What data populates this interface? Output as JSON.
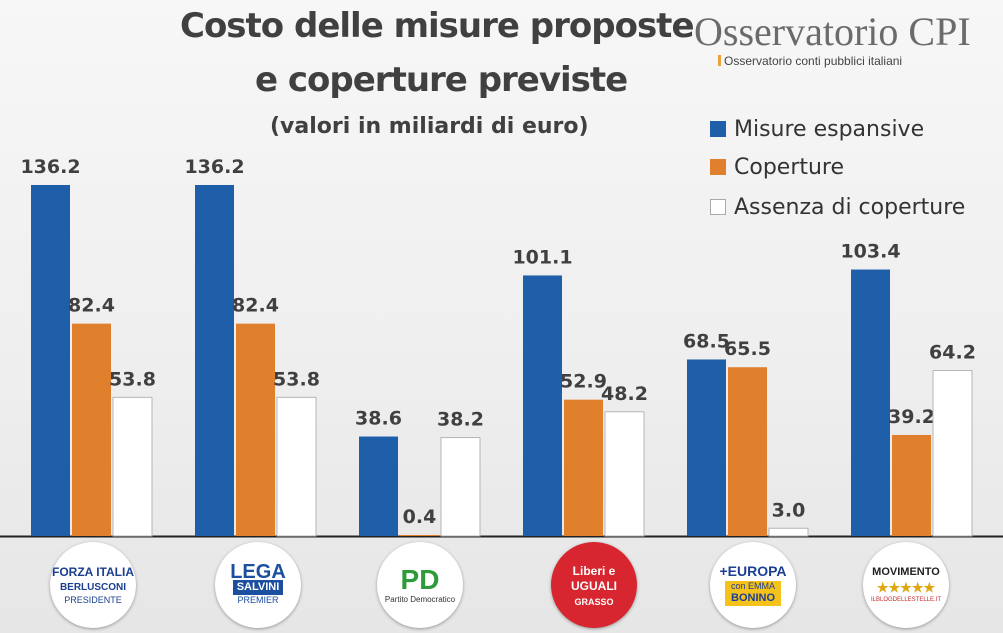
{
  "title": {
    "line1": "Costo delle misure proposte",
    "line2": "e coperture previste",
    "subtitle": "(valori in miliardi di euro)"
  },
  "brand": {
    "name": "Osservatorio CPI",
    "tagline": "Osservatorio conti pubblici italiani"
  },
  "legend": [
    {
      "label": "Misure espansive",
      "color": "#1f5ea8"
    },
    {
      "label": "Coperture",
      "color": "#e07f2c"
    },
    {
      "label": "Assenza di coperture",
      "color": "#ffffff"
    }
  ],
  "parties": [
    {
      "main": "FORZA ITALIA",
      "sub1": "BERLUSCONI",
      "sub2": "PRESIDENTE",
      "color": "#1a3f8f"
    },
    {
      "main": "LEGA",
      "sub1": "SALVINI",
      "sub2": "PREMIER",
      "color": "#1c4fa0"
    },
    {
      "main": "PD",
      "sub1": "Partito Democratico",
      "sub2": "",
      "color": "#2e9b3a"
    },
    {
      "main": "Liberi e UGUALI",
      "sub1": "GRASSO",
      "sub2": "",
      "color": "#d7262f"
    },
    {
      "main": "+EUROPA",
      "sub1": "con EMMA",
      "sub2": "BONINO",
      "color": "#f4c21b"
    },
    {
      "main": "MOVIMENTO",
      "sub1": "★★★★★",
      "sub2": "ILBLOGDELLESTELLE.IT",
      "color": "#c62828"
    }
  ],
  "chart_data": {
    "type": "bar",
    "categories": [
      "Forza Italia",
      "Lega",
      "PD",
      "Liberi e Uguali",
      "+Europa",
      "Movimento 5 Stelle"
    ],
    "series": [
      {
        "name": "Misure espansive",
        "values": [
          136.2,
          136.2,
          38.6,
          101.1,
          68.5,
          103.4
        ],
        "color": "#1f5ea8"
      },
      {
        "name": "Coperture",
        "values": [
          82.4,
          82.4,
          0.4,
          52.9,
          65.5,
          39.2
        ],
        "color": "#e07f2c"
      },
      {
        "name": "Assenza di coperture",
        "values": [
          53.8,
          53.8,
          38.2,
          48.2,
          3.0,
          64.2
        ],
        "color": "#ffffff"
      }
    ],
    "ylim": [
      0,
      150
    ],
    "grid": false,
    "legend_position": "top-right",
    "data_labels": true
  }
}
